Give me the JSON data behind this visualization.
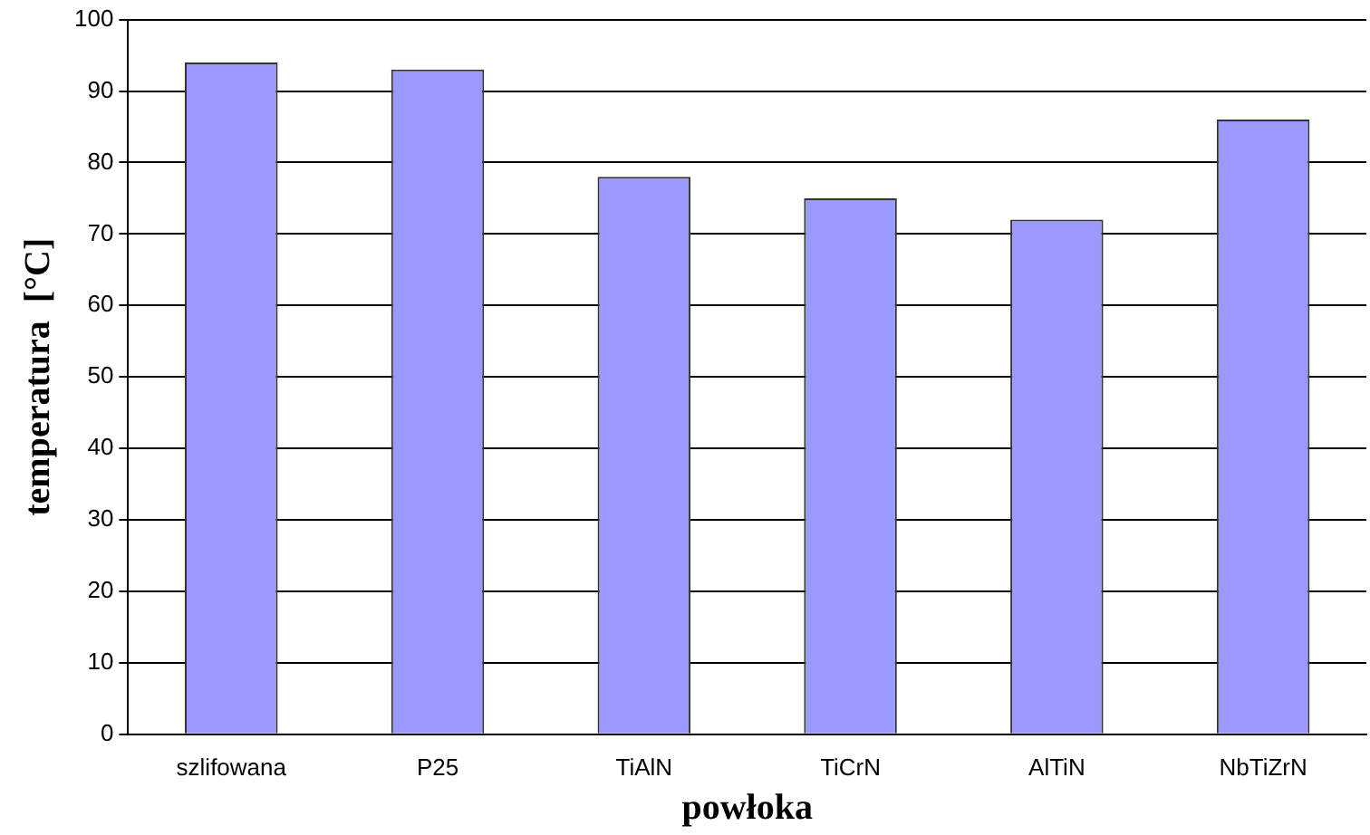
{
  "chart_data": {
    "type": "bar",
    "xlabel": "powłoka",
    "ylabel": "temperatura  [°C]",
    "categories": [
      "szlifowana",
      "P25",
      "TiAlN",
      "TiCrN",
      "AlTiN",
      "NbTiZrN"
    ],
    "values": [
      94,
      93,
      78,
      75,
      72,
      86
    ],
    "color": "#9999ff",
    "ylim": [
      0,
      100
    ],
    "yticks": [
      0,
      10,
      20,
      30,
      40,
      50,
      60,
      70,
      80,
      90,
      100
    ],
    "grid": "y",
    "legend": false
  }
}
